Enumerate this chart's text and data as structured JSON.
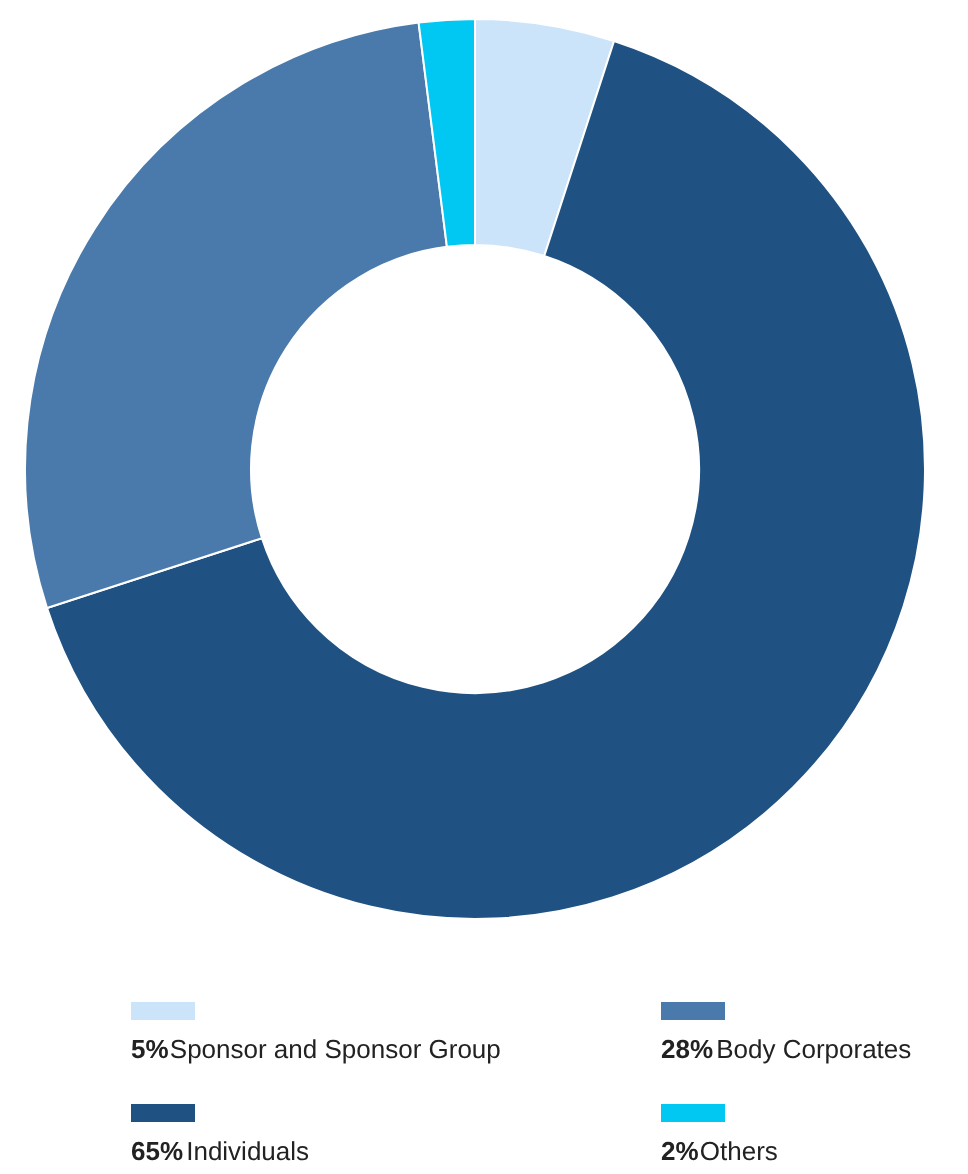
{
  "chart_data": {
    "type": "donut",
    "categories": [
      "Sponsor and Sponsor Group",
      "Individuals",
      "Body Corporates",
      "Others"
    ],
    "values": [
      5,
      65,
      28,
      2
    ],
    "value_labels": [
      "5%",
      "65%",
      "28%",
      "2%"
    ],
    "colors": [
      "#cce4fa",
      "#1f5282",
      "#4a7aab",
      "#00c8f2"
    ],
    "legend": "bottom"
  }
}
